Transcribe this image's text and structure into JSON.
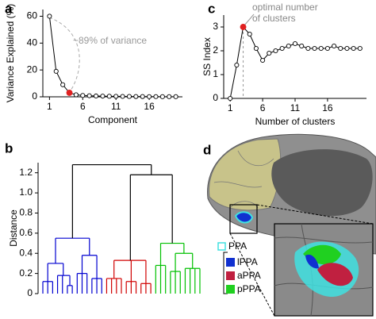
{
  "chart_data": [
    {
      "type": "line",
      "panel_label": "a",
      "x": [
        1,
        2,
        3,
        4,
        5,
        6,
        7,
        8,
        9,
        10,
        11,
        12,
        13,
        14,
        15,
        16,
        17,
        18,
        19,
        20
      ],
      "values": [
        60,
        19,
        9,
        3,
        1.5,
        1,
        0.8,
        0.6,
        0.5,
        0.4,
        0.35,
        0.3,
        0.25,
        0.2,
        0.2,
        0.15,
        0.15,
        0.1,
        0.1,
        0.1
      ],
      "xlabel": "Component",
      "ylabel": "Variance Explained (%)",
      "xlim": [
        0,
        21
      ],
      "ylim": [
        0,
        65
      ],
      "xticks": [
        1,
        6,
        11,
        16
      ],
      "yticks": [
        0,
        20,
        40,
        60
      ],
      "annotation": "~89% of variance",
      "highlight_index": 3,
      "color": "#000000",
      "highlight_color": "#e02020"
    },
    {
      "type": "line",
      "panel_label": "c",
      "x": [
        1,
        2,
        3,
        4,
        5,
        6,
        7,
        8,
        9,
        10,
        11,
        12,
        13,
        14,
        15,
        16,
        17,
        18,
        19,
        20,
        21
      ],
      "values": [
        0,
        1.4,
        3.0,
        2.7,
        2.1,
        1.6,
        1.9,
        2.0,
        2.1,
        2.2,
        2.3,
        2.2,
        2.1,
        2.1,
        2.1,
        2.1,
        2.2,
        2.1,
        2.1,
        2.1,
        2.1
      ],
      "xlabel": "Number of clusters",
      "ylabel": "SS Index",
      "xlim": [
        0,
        22
      ],
      "ylim": [
        0,
        3.5
      ],
      "xticks": [
        1,
        6,
        11,
        16
      ],
      "yticks": [
        0,
        1,
        2,
        3
      ],
      "annotation": "optimal number of clusters",
      "highlight_index": 2,
      "color": "#000000",
      "highlight_color": "#e02020"
    },
    {
      "type": "dendrogram",
      "panel_label": "b",
      "ylabel": "Distance",
      "ylim": [
        0,
        1.3
      ],
      "yticks": [
        0,
        0.2,
        0.4,
        0.6,
        0.8,
        {
          "value": 1,
          "label": "1.0"
        },
        1.2
      ],
      "tree": {
        "height": 1.28,
        "color": "#000000",
        "children": [
          {
            "color": "#0000d0",
            "height": 0.55,
            "children": [
              {
                "height": 0.3,
                "children": [
                  {
                    "height": 0.12,
                    "children": [
                      {
                        "height": 0
                      },
                      {
                        "height": 0
                      },
                      {
                        "height": 0
                      }
                    ]
                  },
                  {
                    "height": 0.18,
                    "children": [
                      {
                        "height": 0
                      },
                      {
                        "height": 0
                      },
                      {
                        "height": 0.08,
                        "children": [
                          {
                            "height": 0
                          },
                          {
                            "height": 0
                          }
                        ]
                      }
                    ]
                  }
                ]
              },
              {
                "height": 0.38,
                "children": [
                  {
                    "height": 0.2,
                    "children": [
                      {
                        "height": 0
                      },
                      {
                        "height": 0
                      },
                      {
                        "height": 0
                      }
                    ]
                  },
                  {
                    "height": 0.15,
                    "children": [
                      {
                        "height": 0
                      },
                      {
                        "height": 0
                      },
                      {
                        "height": 0
                      }
                    ]
                  }
                ]
              }
            ]
          },
          {
            "height": 1.18,
            "children": [
              {
                "color": "#d00000",
                "height": 0.33,
                "children": [
                  {
                    "height": 0.15,
                    "children": [
                      {
                        "height": 0
                      },
                      {
                        "height": 0
                      },
                      {
                        "height": 0
                      },
                      {
                        "height": 0
                      }
                    ]
                  },
                  {
                    "height": 0.12,
                    "children": [
                      {
                        "height": 0
                      },
                      {
                        "height": 0
                      },
                      {
                        "height": 0
                      }
                    ]
                  },
                  {
                    "height": 0.1,
                    "children": [
                      {
                        "height": 0
                      },
                      {
                        "height": 0
                      },
                      {
                        "height": 0
                      }
                    ]
                  }
                ]
              },
              {
                "color": "#00c000",
                "height": 0.5,
                "children": [
                  {
                    "height": 0.28,
                    "children": [
                      {
                        "height": 0
                      },
                      {
                        "height": 0
                      },
                      {
                        "height": 0
                      }
                    ]
                  },
                  {
                    "height": 0.4,
                    "children": [
                      {
                        "height": 0.22,
                        "children": [
                          {
                            "height": 0
                          },
                          {
                            "height": 0
                          },
                          {
                            "height": 0
                          }
                        ]
                      },
                      {
                        "height": 0.25,
                        "children": [
                          {
                            "height": 0
                          },
                          {
                            "height": 0
                          },
                          {
                            "height": 0
                          },
                          {
                            "height": 0
                          }
                        ]
                      }
                    ]
                  }
                ]
              }
            ]
          }
        ]
      }
    }
  ],
  "figure_d": {
    "panel_label": "d",
    "legend": [
      {
        "name": "PPA",
        "color": "#40e0e0"
      },
      {
        "name": "lPPA",
        "color": "#1030d0"
      },
      {
        "name": "aPPA",
        "color": "#c02040"
      },
      {
        "name": "pPPA",
        "color": "#20d020"
      }
    ]
  }
}
